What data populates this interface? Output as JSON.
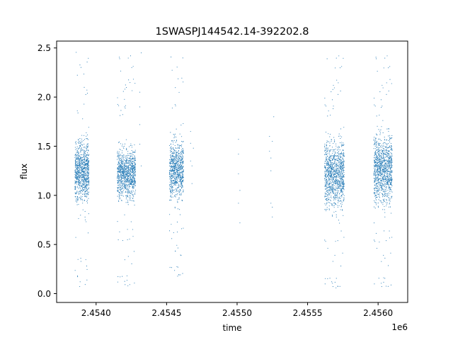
{
  "chart_data": {
    "type": "scatter",
    "title": "1SWASPJ144542.14-392202.8",
    "xlabel": "time",
    "ylabel": "flux",
    "x_offset_label": "1e6",
    "xlim": [
      2.45372,
      2.45621
    ],
    "ylim": [
      -0.09,
      2.57
    ],
    "grid": false,
    "legend": "none",
    "point_color": "#1f77b4",
    "x_ticks": [
      {
        "value": 2.454,
        "label": "2.4540"
      },
      {
        "value": 2.4545,
        "label": "2.4545"
      },
      {
        "value": 2.455,
        "label": "2.4550"
      },
      {
        "value": 2.4555,
        "label": "2.4555"
      },
      {
        "value": 2.456,
        "label": "2.4560"
      }
    ],
    "y_ticks": [
      {
        "value": 0.0,
        "label": "0.0"
      },
      {
        "value": 0.5,
        "label": "0.5"
      },
      {
        "value": 1.0,
        "label": "1.0"
      },
      {
        "value": 1.5,
        "label": "1.5"
      },
      {
        "value": 2.0,
        "label": "2.0"
      },
      {
        "value": 2.5,
        "label": "2.5"
      }
    ],
    "clusters": [
      {
        "x_start": 2.45385,
        "x_end": 2.45395,
        "flux_center": 1.25,
        "flux_spread": 0.14,
        "flux_min": 0.03,
        "flux_max": 2.46,
        "n": 900
      },
      {
        "x_start": 2.45415,
        "x_end": 2.45428,
        "flux_center": 1.22,
        "flux_spread": 0.12,
        "flux_min": 0.05,
        "flux_max": 2.46,
        "n": 1000
      },
      {
        "x_start": 2.45452,
        "x_end": 2.45462,
        "flux_center": 1.27,
        "flux_spread": 0.14,
        "flux_min": 0.15,
        "flux_max": 2.46,
        "n": 800
      },
      {
        "x_start": 2.45562,
        "x_end": 2.45576,
        "flux_center": 1.22,
        "flux_spread": 0.16,
        "flux_min": 0.03,
        "flux_max": 2.46,
        "n": 1100
      },
      {
        "x_start": 2.45597,
        "x_end": 2.4561,
        "flux_center": 1.27,
        "flux_spread": 0.17,
        "flux_min": 0.03,
        "flux_max": 2.46,
        "n": 1100
      }
    ],
    "sparse_points": [
      {
        "x": 2.45467,
        "y": 1.65
      },
      {
        "x": 2.45467,
        "y": 1.53
      },
      {
        "x": 2.45467,
        "y": 1.35
      },
      {
        "x": 2.45468,
        "y": 1.3
      },
      {
        "x": 2.45468,
        "y": 1.12
      },
      {
        "x": 2.45469,
        "y": 1.48
      },
      {
        "x": 2.45501,
        "y": 1.57
      },
      {
        "x": 2.45501,
        "y": 1.42
      },
      {
        "x": 2.45501,
        "y": 1.22
      },
      {
        "x": 2.45501,
        "y": 0.92
      },
      {
        "x": 2.45502,
        "y": 0.72
      },
      {
        "x": 2.45502,
        "y": 1.05
      },
      {
        "x": 2.45523,
        "y": 1.6
      },
      {
        "x": 2.45523,
        "y": 1.45
      },
      {
        "x": 2.45524,
        "y": 1.38
      },
      {
        "x": 2.45524,
        "y": 1.25
      },
      {
        "x": 2.45524,
        "y": 0.92
      },
      {
        "x": 2.45525,
        "y": 0.78
      },
      {
        "x": 2.45526,
        "y": 1.8
      },
      {
        "x": 2.45525,
        "y": 1.55
      },
      {
        "x": 2.45525,
        "y": 0.88
      },
      {
        "x": 2.45431,
        "y": 2.05
      },
      {
        "x": 2.45431,
        "y": 1.9
      },
      {
        "x": 2.45431,
        "y": 1.72
      },
      {
        "x": 2.45432,
        "y": 2.45
      },
      {
        "x": 2.45432,
        "y": 1.3
      },
      {
        "x": 2.45431,
        "y": 1.52
      }
    ]
  }
}
